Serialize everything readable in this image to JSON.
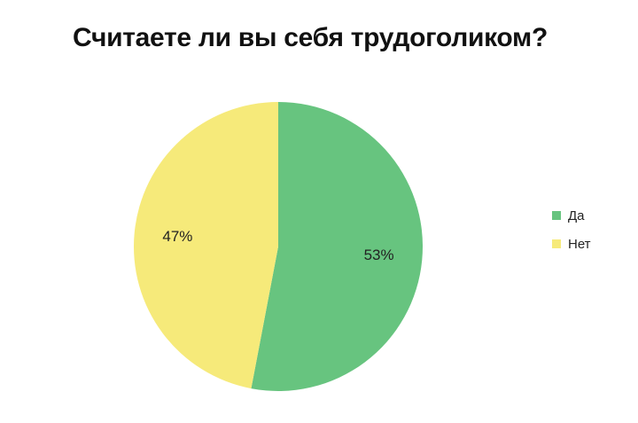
{
  "chart_data": {
    "type": "pie",
    "title": "Считаете ли вы себя трудоголиком?",
    "slices": [
      {
        "label": "Да",
        "value": 53,
        "display": "53%",
        "color": "#67c47f"
      },
      {
        "label": "Нет",
        "value": 47,
        "display": "47%",
        "color": "#f6ea7a"
      }
    ],
    "legend_position": "right"
  }
}
